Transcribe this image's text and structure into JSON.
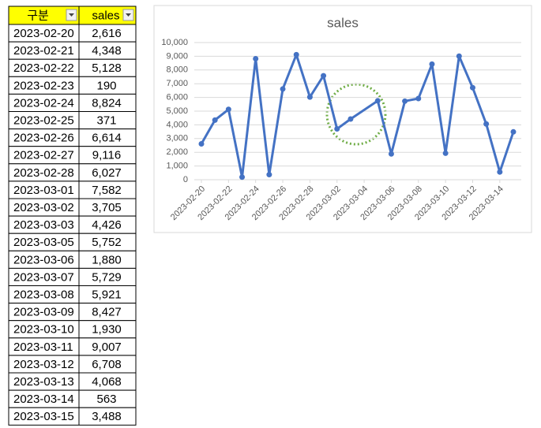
{
  "table": {
    "header": [
      "구분",
      "sales"
    ],
    "rows": [
      [
        "2023-02-20",
        "2,616"
      ],
      [
        "2023-02-21",
        "4,348"
      ],
      [
        "2023-02-22",
        "5,128"
      ],
      [
        "2023-02-23",
        "190"
      ],
      [
        "2023-02-24",
        "8,824"
      ],
      [
        "2023-02-25",
        "371"
      ],
      [
        "2023-02-26",
        "6,614"
      ],
      [
        "2023-02-27",
        "9,116"
      ],
      [
        "2023-02-28",
        "6,027"
      ],
      [
        "2023-03-01",
        "7,582"
      ],
      [
        "2023-03-02",
        "3,705"
      ],
      [
        "2023-03-03",
        "4,426"
      ],
      [
        "2023-03-05",
        "5,752"
      ],
      [
        "2023-03-06",
        "1,880"
      ],
      [
        "2023-03-07",
        "5,729"
      ],
      [
        "2023-03-08",
        "5,921"
      ],
      [
        "2023-03-09",
        "8,427"
      ],
      [
        "2023-03-10",
        "1,930"
      ],
      [
        "2023-03-11",
        "9,007"
      ],
      [
        "2023-03-12",
        "6,708"
      ],
      [
        "2023-03-13",
        "4,068"
      ],
      [
        "2023-03-14",
        "563"
      ],
      [
        "2023-03-15",
        "3,488"
      ]
    ]
  },
  "chart_data": {
    "type": "line",
    "title": "sales",
    "color": "#4472c4",
    "grid": true,
    "x": [
      "2023-02-20",
      "2023-02-21",
      "2023-02-22",
      "2023-02-23",
      "2023-02-24",
      "2023-02-25",
      "2023-02-26",
      "2023-02-27",
      "2023-02-28",
      "2023-03-01",
      "2023-03-02",
      "2023-03-03",
      "2023-03-05",
      "2023-03-06",
      "2023-03-07",
      "2023-03-08",
      "2023-03-09",
      "2023-03-10",
      "2023-03-11",
      "2023-03-12",
      "2023-03-13",
      "2023-03-14",
      "2023-03-15"
    ],
    "values": [
      2616,
      4348,
      5128,
      190,
      8824,
      371,
      6614,
      9116,
      6027,
      7582,
      3705,
      4426,
      5752,
      1880,
      5729,
      5921,
      8427,
      1930,
      9007,
      6708,
      4068,
      563,
      3488
    ],
    "xlim": [
      "2023-02-20",
      "2023-03-15"
    ],
    "xticks": [
      "2023-02-20",
      "2023-02-22",
      "2023-02-24",
      "2023-02-26",
      "2023-02-28",
      "2023-03-02",
      "2023-03-04",
      "2023-03-06",
      "2023-03-08",
      "2023-03-10",
      "2023-03-12",
      "2023-03-14"
    ],
    "ylim": [
      0,
      10000
    ],
    "yticks": [
      0,
      {
        "value": 1000,
        "label": "1,000"
      },
      {
        "value": 2000,
        "label": "2,000"
      },
      {
        "value": 3000,
        "label": "3,000"
      },
      {
        "value": 4000,
        "label": "4,000"
      },
      {
        "value": 5000,
        "label": "5,000"
      },
      {
        "value": 6000,
        "label": "6,000"
      },
      {
        "value": 7000,
        "label": "7,000"
      },
      {
        "value": 8000,
        "label": "8,000"
      },
      {
        "value": 9000,
        "label": "9,000"
      },
      {
        "value": 10000,
        "label": "10,000"
      }
    ]
  }
}
